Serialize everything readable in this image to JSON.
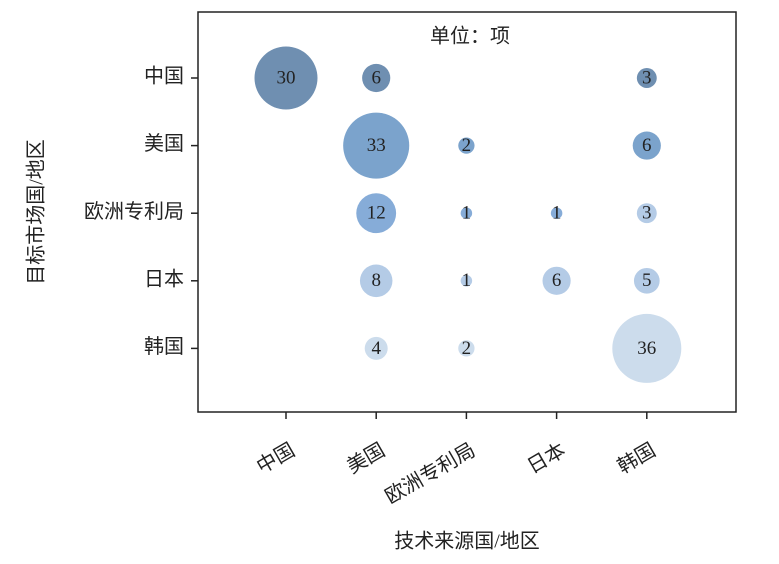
{
  "chart_data": {
    "type": "bubble",
    "title": "单位：项",
    "x_label": "技术来源国/地区",
    "y_label": "目标市场国/地区",
    "x_categories": [
      "中国",
      "美国",
      "欧洲专利局",
      "日本",
      "韩国"
    ],
    "y_categories": [
      "中国",
      "美国",
      "欧洲专利局",
      "日本",
      "韩国"
    ],
    "values": [
      [
        30,
        6,
        null,
        null,
        3
      ],
      [
        null,
        33,
        2,
        null,
        6
      ],
      [
        null,
        12,
        1,
        1,
        3
      ],
      [
        null,
        8,
        1,
        6,
        5
      ],
      [
        null,
        4,
        2,
        null,
        36
      ]
    ],
    "colors": [
      [
        "#6f8fb1",
        "#6f8fb1",
        null,
        null,
        "#6f8fb1"
      ],
      [
        null,
        "#7ba3cc",
        "#7ba3cc",
        null,
        "#7ba3cc"
      ],
      [
        null,
        "#86acd8",
        "#86acd8",
        "#86acd8",
        "#b4cbe6"
      ],
      [
        null,
        "#b4cbe6",
        "#b4cbe6",
        "#b4cbe6",
        "#b4cbe6"
      ],
      [
        null,
        "#ccdcec",
        "#ccdcec",
        null,
        "#ccdcec"
      ]
    ]
  }
}
